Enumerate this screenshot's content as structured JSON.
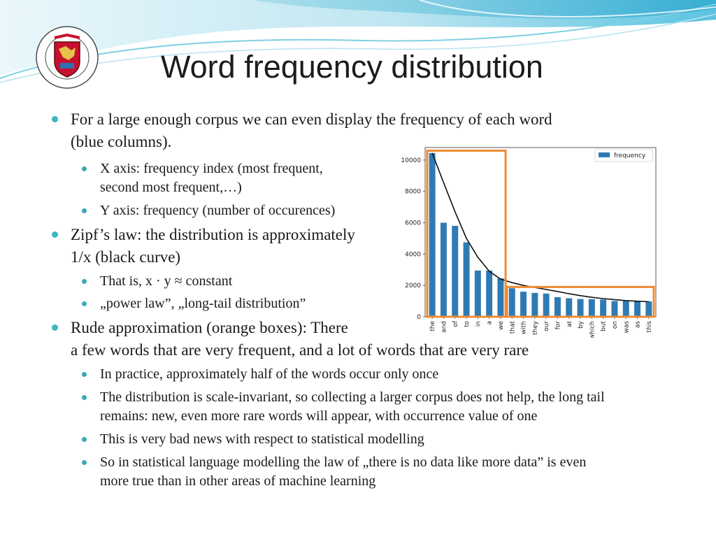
{
  "slide": {
    "title": "Word frequency distribution",
    "bullets": [
      {
        "text": "For a large enough corpus we can even display the frequency of each word",
        "cont": "(blue columns)."
      },
      {
        "text": "X axis: frequency index (most frequent,",
        "cont": "second most frequent,…)"
      },
      {
        "text": "Y axis: frequency (number of occurences)"
      },
      {
        "text": "Zipf’s law: the distribution is approximately",
        "cont": "1/x (black curve)"
      },
      {
        "text": "That is, x · y ≈ constant"
      },
      {
        "text": "„power law”, „long-tail distribution”"
      },
      {
        "text": "Rude approximation (orange boxes): There",
        "cont": "a few words  that are very frequent, and a lot of words that are very rare"
      },
      {
        "text": "In practice, approximately half of the words occur only once"
      },
      {
        "text": "The distribution is scale-invariant, so collecting a larger corpus does not help, the long tail",
        "cont": "remains: new, even more rare words will appear, with occurrence value of one"
      },
      {
        "text": "This is very bad news with respect to statistical modelling"
      },
      {
        "text": "So in statistical language modelling the law of „there is no data like more data” is even",
        "cont": "more true than in other areas of machine learning"
      }
    ]
  },
  "colors": {
    "bar": "#2e7bb4",
    "box": "#ee8b34",
    "curve": "#111111",
    "bullet": "#3bb6c2"
  },
  "icons": {
    "logo": "university-seal-icon"
  },
  "chart_data": {
    "type": "bar",
    "categories": [
      "the",
      "and",
      "of",
      "to",
      "in",
      "a",
      "we",
      "that",
      "with",
      "they",
      "our",
      "for",
      "at",
      "by",
      "which",
      "but",
      "on",
      "was",
      "as",
      "this"
    ],
    "series": [
      {
        "name": "frequency",
        "values": [
          10450,
          6000,
          5800,
          4750,
          2950,
          2950,
          2450,
          1820,
          1600,
          1520,
          1480,
          1250,
          1180,
          1130,
          1120,
          1100,
          1000,
          1000,
          980,
          980
        ]
      }
    ],
    "curve": {
      "name": "",
      "values": [
        10450,
        8550,
        6700,
        5000,
        3800,
        2900,
        2400,
        2180,
        2000,
        1870,
        1740,
        1610,
        1470,
        1350,
        1240,
        1160,
        1090,
        1030,
        990,
        960
      ]
    },
    "orange_boxes": [
      {
        "from": "the",
        "to": "we",
        "top": 10600
      },
      {
        "from": "that",
        "to": "this",
        "top": 1900
      }
    ],
    "ylim": [
      0,
      10800
    ],
    "yticks": [
      0,
      2000,
      4000,
      6000,
      8000,
      10000
    ],
    "legend": {
      "label": "frequency",
      "placement": "top-right"
    },
    "grid": false
  }
}
